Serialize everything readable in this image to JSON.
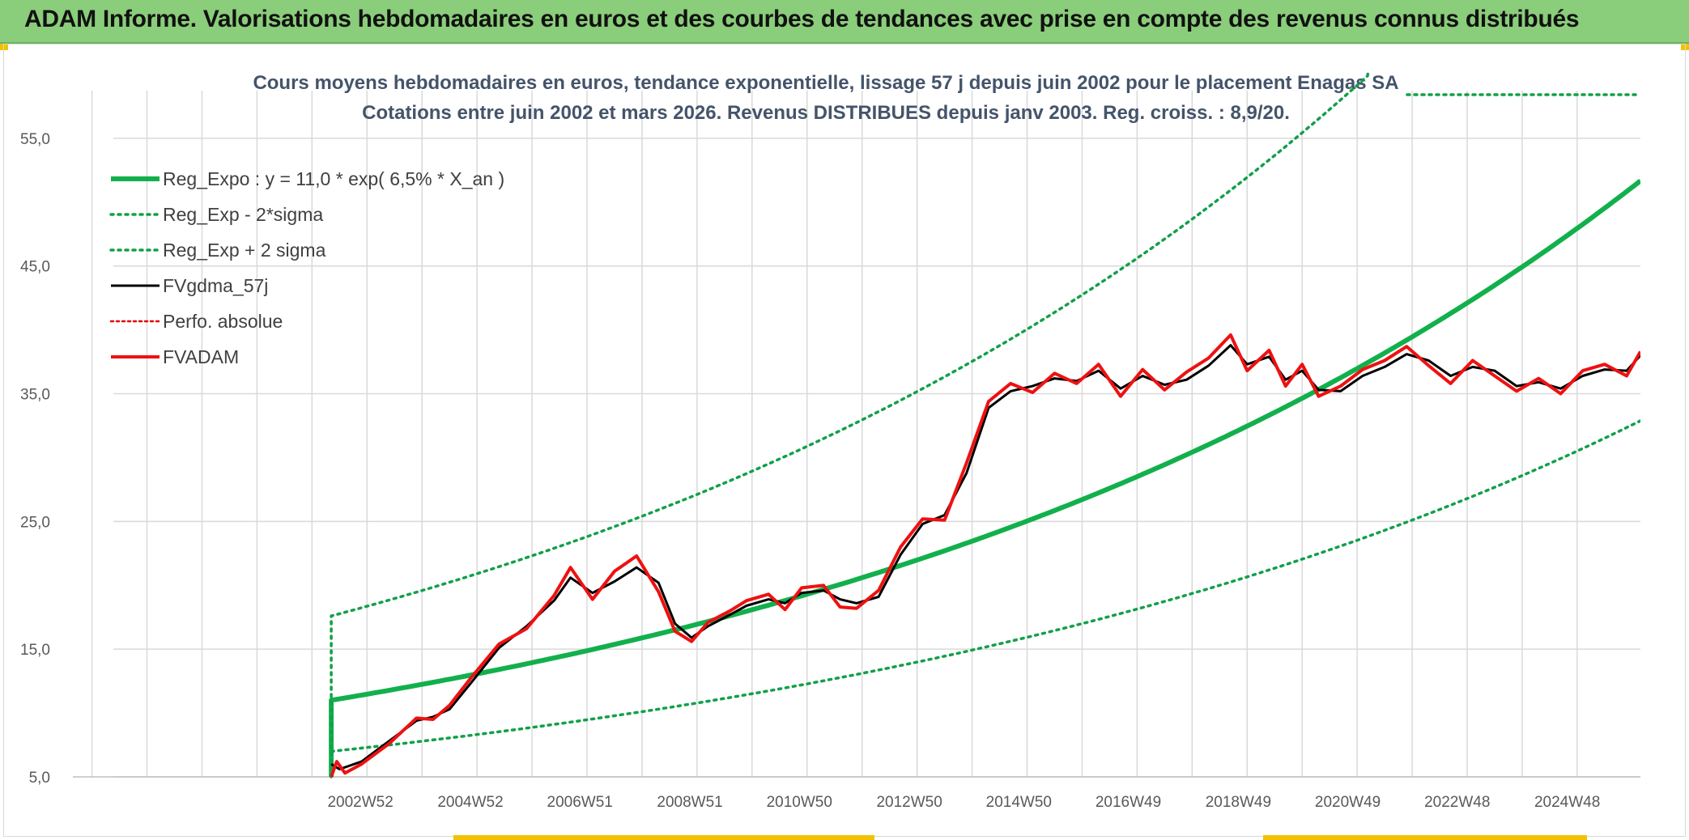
{
  "header": {
    "title": "ADAM Informe. Valorisations hebdomadaires en euros et des courbes de tendances avec prise en compte des revenus connus distribués"
  },
  "colors": {
    "banner": "#8acd7a",
    "reg_expo": "#12b04c",
    "sigma": "#12a04a",
    "fvgdma": "#000000",
    "perfo": "#e00000",
    "fvadam": "#ee1111",
    "grid": "#d9d9d9",
    "axis_text": "#595959",
    "title_text": "#44546a"
  },
  "chart_data": {
    "type": "line",
    "title": "Cours moyens hebdomadaires en euros, tendance exponentielle, lissage 57 j depuis juin 2002 pour le placement Enagas SA",
    "subtitle": "Cotations entre juin 2002 et mars 2026. Revenus DISTRIBUES depuis janv 2003. Reg. croiss. : 8,9/20.",
    "xlabel": "",
    "ylabel": "",
    "ylim": [
      5,
      60
    ],
    "yticks": [
      5,
      15,
      25,
      35,
      45,
      55
    ],
    "ytick_labels": [
      "5,0",
      "15,0",
      "25,0",
      "35,0",
      "45,0",
      "55,0"
    ],
    "xlim": [
      1997.9,
      2026.25
    ],
    "xticks": [
      2002.98,
      2004.98,
      2006.97,
      2008.97,
      2010.96,
      2012.96,
      2014.95,
      2016.94,
      2018.94,
      2020.93,
      2022.92,
      2024.92
    ],
    "xtick_labels": [
      "2002W52",
      "2004W52",
      "2006W51",
      "2008W51",
      "2010W50",
      "2012W50",
      "2014W50",
      "2016W49",
      "2018W49",
      "2020W49",
      "2022W48",
      "2024W48"
    ],
    "grid": true,
    "legend_position": "top-left",
    "series": [
      {
        "name": "Reg_Expo : y = 11,0 * exp( 6,5% *  X_an )",
        "style": "solid-thick",
        "formula": "11.0 * exp(0.065 * (x - 2002.45))",
        "x_range": [
          2002.45,
          2026.25
        ],
        "start_drop_to": 5
      },
      {
        "name": "Reg_Exp - 2*sigma",
        "style": "dotted",
        "formula": "7.0 * exp(0.065 * (x - 2002.45))",
        "x_range": [
          2002.45,
          2026.25
        ]
      },
      {
        "name": "Reg_Exp + 2 sigma",
        "style": "dotted",
        "formula": "17.6 * exp(0.065 * (x - 2002.45))",
        "x_range": [
          2002.45,
          2026.25
        ],
        "start_drop_to": 5,
        "clip_value": 60
      },
      {
        "name": "FVgdma_57j",
        "style": "solid",
        "x": [
          2002.45,
          2002.6,
          2003.0,
          2003.5,
          2004.0,
          2004.3,
          2004.6,
          2005.0,
          2005.5,
          2006.0,
          2006.5,
          2006.8,
          2007.2,
          2007.6,
          2008.0,
          2008.4,
          2008.7,
          2009.0,
          2009.3,
          2009.7,
          2010.0,
          2010.4,
          2010.7,
          2011.0,
          2011.4,
          2011.7,
          2012.0,
          2012.4,
          2012.8,
          2013.2,
          2013.6,
          2014.0,
          2014.4,
          2014.8,
          2015.2,
          2015.6,
          2016.0,
          2016.4,
          2016.8,
          2017.2,
          2017.6,
          2018.0,
          2018.4,
          2018.8,
          2019.1,
          2019.5,
          2019.8,
          2020.1,
          2020.4,
          2020.8,
          2021.2,
          2021.6,
          2022.0,
          2022.4,
          2022.8,
          2023.2,
          2023.6,
          2024.0,
          2024.4,
          2024.8,
          2025.2,
          2025.6,
          2026.0,
          2026.25
        ],
        "y": [
          6.0,
          5.6,
          6.2,
          7.8,
          9.4,
          9.7,
          10.3,
          12.4,
          15.1,
          16.8,
          18.8,
          20.6,
          19.4,
          20.3,
          21.4,
          20.2,
          17.0,
          15.9,
          16.8,
          17.7,
          18.4,
          18.9,
          18.6,
          19.4,
          19.6,
          18.9,
          18.6,
          19.1,
          22.4,
          24.8,
          25.5,
          28.8,
          33.9,
          35.2,
          35.6,
          36.2,
          36.0,
          36.8,
          35.4,
          36.4,
          35.7,
          36.1,
          37.2,
          38.8,
          37.3,
          37.9,
          36.1,
          36.8,
          35.3,
          35.2,
          36.4,
          37.1,
          38.1,
          37.6,
          36.4,
          37.1,
          36.8,
          35.6,
          35.9,
          35.4,
          36.4,
          36.9,
          36.8,
          38.0
        ]
      },
      {
        "name": "Perfo. absolue",
        "style": "dotted-red",
        "x": [],
        "y": []
      },
      {
        "name": "FVADAM",
        "style": "solid-red",
        "x": [
          2002.45,
          2002.55,
          2002.7,
          2003.0,
          2003.5,
          2004.0,
          2004.3,
          2004.6,
          2005.0,
          2005.5,
          2006.0,
          2006.5,
          2006.8,
          2007.2,
          2007.6,
          2008.0,
          2008.4,
          2008.7,
          2009.0,
          2009.3,
          2009.7,
          2010.0,
          2010.4,
          2010.7,
          2011.0,
          2011.4,
          2011.7,
          2012.0,
          2012.4,
          2012.8,
          2013.2,
          2013.6,
          2014.0,
          2014.4,
          2014.8,
          2015.2,
          2015.6,
          2016.0,
          2016.4,
          2016.8,
          2017.2,
          2017.6,
          2018.0,
          2018.4,
          2018.8,
          2019.1,
          2019.5,
          2019.8,
          2020.1,
          2020.4,
          2020.8,
          2021.2,
          2021.6,
          2022.0,
          2022.4,
          2022.8,
          2023.2,
          2023.6,
          2024.0,
          2024.4,
          2024.8,
          2025.2,
          2025.6,
          2026.0,
          2026.25
        ],
        "y": [
          5.0,
          6.2,
          5.3,
          6.0,
          7.6,
          9.6,
          9.5,
          10.6,
          12.8,
          15.4,
          16.6,
          19.2,
          21.4,
          18.9,
          21.1,
          22.3,
          19.5,
          16.4,
          15.6,
          17.1,
          18.0,
          18.8,
          19.3,
          18.1,
          19.8,
          20.0,
          18.3,
          18.2,
          19.6,
          23.0,
          25.2,
          25.1,
          29.6,
          34.4,
          35.8,
          35.1,
          36.6,
          35.8,
          37.3,
          34.8,
          36.9,
          35.3,
          36.7,
          37.8,
          39.6,
          36.8,
          38.4,
          35.6,
          37.3,
          34.8,
          35.6,
          36.9,
          37.6,
          38.7,
          37.2,
          35.8,
          37.6,
          36.4,
          35.2,
          36.2,
          35.0,
          36.8,
          37.3,
          36.4,
          38.3
        ]
      }
    ]
  }
}
